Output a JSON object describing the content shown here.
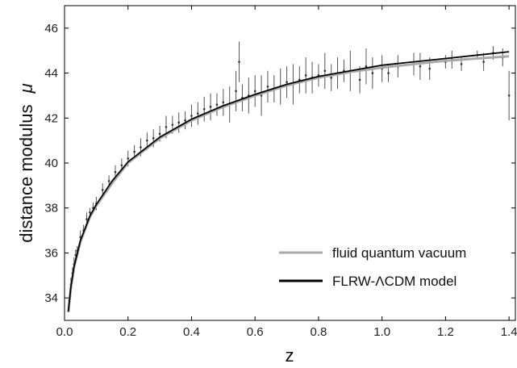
{
  "chart_data": {
    "type": "scatter",
    "xlabel": "z",
    "ylabel_text": "distance modulus",
    "ylabel_symbol": "μ",
    "xlim": [
      0.0,
      1.42
    ],
    "ylim": [
      33.0,
      47.0
    ],
    "x_ticks": [
      "0.0",
      "0.2",
      "0.4",
      "0.6",
      "0.8",
      "1.0",
      "1.2",
      "1.4"
    ],
    "y_ticks": [
      "34",
      "36",
      "38",
      "40",
      "42",
      "44",
      "46"
    ],
    "grid": false,
    "legend_position": "bottom-right",
    "legend": [
      {
        "label": "fluid quantum vacuum",
        "color": "#a9a9a9"
      },
      {
        "label": "FLRW-ΛCDM model",
        "color": "#000000"
      }
    ],
    "series": [
      {
        "name": "fluid quantum vacuum",
        "type": "line",
        "color": "#a9a9a9",
        "x": [
          0.012,
          0.02,
          0.03,
          0.05,
          0.08,
          0.1,
          0.15,
          0.2,
          0.3,
          0.4,
          0.5,
          0.6,
          0.7,
          0.8,
          0.9,
          1.0,
          1.1,
          1.2,
          1.3,
          1.4
        ],
        "y": [
          33.35,
          34.45,
          35.35,
          36.5,
          37.6,
          38.1,
          39.1,
          40.0,
          41.1,
          41.9,
          42.5,
          43.0,
          43.45,
          43.8,
          44.05,
          44.25,
          44.4,
          44.55,
          44.65,
          44.75
        ]
      },
      {
        "name": "FLRW-ΛCDM model",
        "type": "line",
        "color": "#000000",
        "x": [
          0.012,
          0.02,
          0.03,
          0.05,
          0.08,
          0.1,
          0.15,
          0.2,
          0.3,
          0.4,
          0.5,
          0.6,
          0.7,
          0.8,
          0.9,
          1.0,
          1.1,
          1.2,
          1.3,
          1.4
        ],
        "y": [
          33.4,
          34.5,
          35.4,
          36.55,
          37.65,
          38.15,
          39.2,
          40.05,
          41.15,
          41.95,
          42.55,
          43.05,
          43.5,
          43.85,
          44.1,
          44.35,
          44.5,
          44.65,
          44.8,
          44.95
        ]
      },
      {
        "name": "",
        "type": "scatter_errorbars",
        "color": "#555555",
        "x": [
          0.015,
          0.02,
          0.025,
          0.03,
          0.035,
          0.04,
          0.05,
          0.06,
          0.07,
          0.08,
          0.09,
          0.1,
          0.12,
          0.14,
          0.16,
          0.18,
          0.2,
          0.22,
          0.24,
          0.26,
          0.28,
          0.3,
          0.32,
          0.34,
          0.36,
          0.38,
          0.4,
          0.42,
          0.44,
          0.46,
          0.48,
          0.5,
          0.52,
          0.54,
          0.55,
          0.56,
          0.58,
          0.6,
          0.62,
          0.64,
          0.66,
          0.68,
          0.7,
          0.72,
          0.74,
          0.76,
          0.78,
          0.8,
          0.82,
          0.84,
          0.86,
          0.88,
          0.9,
          0.93,
          0.95,
          0.97,
          1.0,
          1.02,
          1.05,
          1.1,
          1.12,
          1.15,
          1.2,
          1.22,
          1.25,
          1.3,
          1.32,
          1.35,
          1.38,
          1.4
        ],
        "y": [
          33.9,
          34.6,
          35.1,
          35.5,
          35.9,
          36.1,
          36.7,
          37.0,
          37.5,
          37.8,
          38.0,
          38.2,
          38.8,
          39.2,
          39.6,
          39.9,
          40.2,
          40.5,
          40.7,
          41.0,
          41.1,
          41.3,
          41.6,
          41.7,
          41.8,
          41.9,
          42.1,
          42.2,
          42.4,
          42.5,
          42.6,
          42.7,
          42.6,
          43.2,
          44.5,
          42.9,
          43.0,
          43.2,
          43.0,
          43.4,
          43.3,
          43.4,
          43.6,
          43.5,
          43.7,
          43.9,
          43.8,
          43.9,
          44.1,
          43.8,
          44.0,
          44.1,
          44.1,
          43.7,
          44.3,
          44.0,
          44.2,
          44.0,
          44.3,
          44.4,
          44.3,
          44.2,
          44.5,
          44.6,
          44.4,
          44.8,
          44.5,
          44.9,
          44.7,
          43.0
        ],
        "error": [
          0.25,
          0.3,
          0.25,
          0.3,
          0.25,
          0.2,
          0.3,
          0.25,
          0.3,
          0.2,
          0.25,
          0.3,
          0.3,
          0.25,
          0.3,
          0.3,
          0.35,
          0.3,
          0.4,
          0.35,
          0.4,
          0.35,
          0.5,
          0.4,
          0.45,
          0.4,
          0.5,
          0.5,
          0.55,
          0.6,
          0.5,
          0.6,
          0.8,
          0.9,
          0.9,
          0.6,
          0.8,
          0.7,
          0.9,
          0.7,
          0.6,
          0.8,
          0.7,
          0.9,
          0.6,
          0.8,
          0.7,
          0.5,
          0.8,
          0.6,
          0.7,
          0.5,
          0.9,
          0.6,
          0.8,
          0.7,
          0.6,
          0.4,
          0.5,
          0.5,
          0.6,
          0.5,
          0.3,
          0.4,
          0.3,
          0.2,
          0.4,
          0.3,
          0.4,
          1.1
        ]
      }
    ]
  }
}
